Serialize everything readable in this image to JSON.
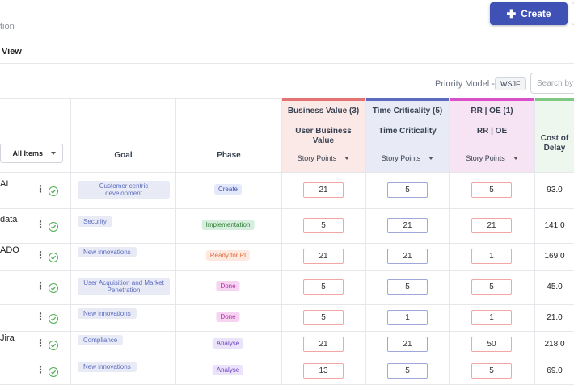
{
  "header": {
    "subtitle": "tion",
    "view_tab": "View",
    "create_label": "Create"
  },
  "toolbar": {
    "priority_model_label": "Priority Model -",
    "priority_model_value": "WSJF",
    "search_placeholder": "Search by"
  },
  "table": {
    "filter_label": "All Items",
    "goal_header": "Goal",
    "phase_header": "Phase",
    "bv": {
      "category": "Business Value (3)",
      "sub": "User Business Value",
      "unit": "Story Points",
      "color": "#e57373"
    },
    "tc": {
      "category": "Time Criticality (5)",
      "sub": "Time Criticality",
      "unit": "Story Points",
      "color": "#5c6bc0"
    },
    "rr": {
      "category": "RR | OE (1)",
      "sub": "RR | OE",
      "unit": "Story Points",
      "color": "#d94fc7"
    },
    "cod_header": "Cost of Delay",
    "rows": [
      {
        "name": "AI",
        "goal": "Customer centric development",
        "phase": "Create",
        "bv": "21",
        "tc": "5",
        "rr": "5",
        "cod": "93.0"
      },
      {
        "name": "data",
        "goal": "Security",
        "phase": "Implementation",
        "bv": "5",
        "tc": "21",
        "rr": "21",
        "cod": "141.0"
      },
      {
        "name": "ADO",
        "goal": "New innovations",
        "phase": "Ready for PI",
        "bv": "21",
        "tc": "21",
        "rr": "1",
        "cod": "169.0"
      },
      {
        "name": "",
        "goal": "User Acquisition and Market Penetration",
        "phase": "Done",
        "bv": "5",
        "tc": "5",
        "rr": "5",
        "cod": "45.0"
      },
      {
        "name": "",
        "goal": "New innovations",
        "phase": "Done",
        "bv": "5",
        "tc": "1",
        "rr": "1",
        "cod": "21.0"
      },
      {
        "name": "Jira",
        "goal": "Compliance",
        "phase": "Analyse",
        "bv": "21",
        "tc": "21",
        "rr": "50",
        "cod": "218.0"
      },
      {
        "name": "",
        "goal": "New innovations",
        "phase": "Analyse",
        "bv": "13",
        "tc": "5",
        "rr": "5",
        "cod": "69.0"
      }
    ]
  }
}
